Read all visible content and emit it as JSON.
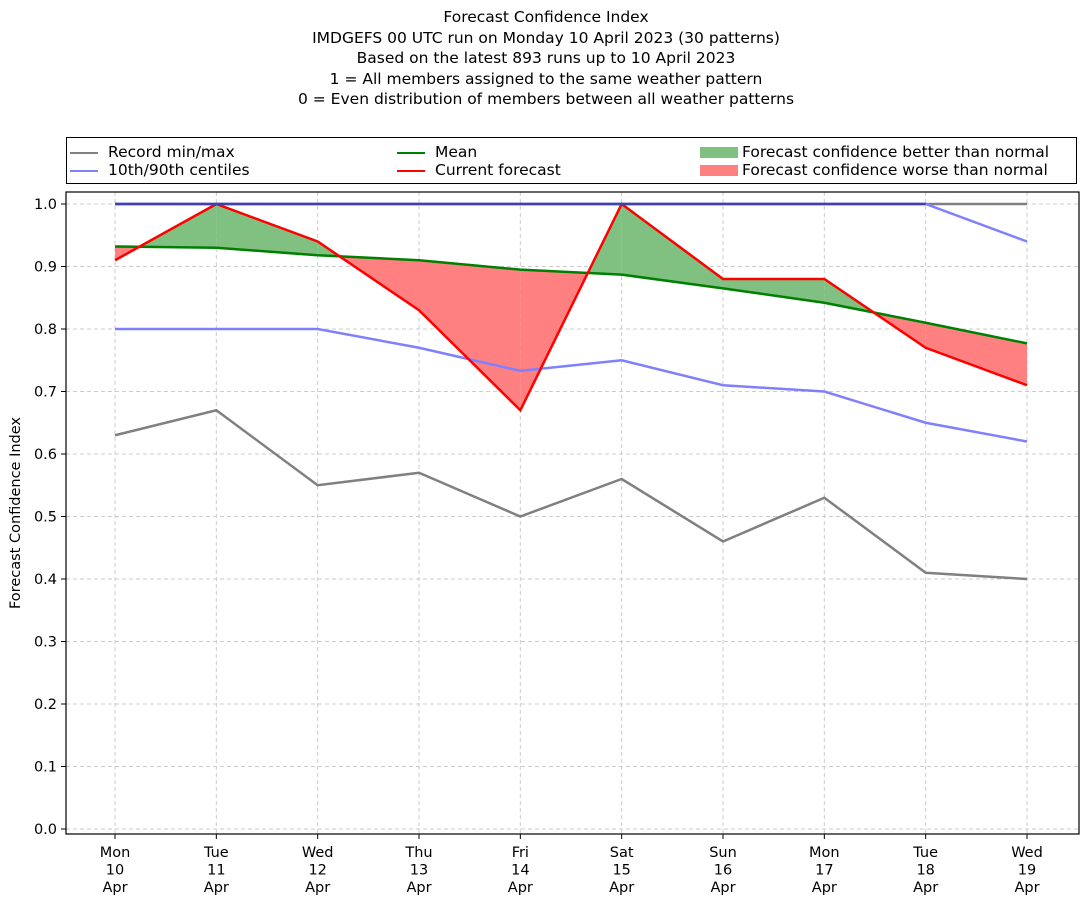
{
  "chart_data": {
    "type": "line",
    "title_lines": [
      "Forecast Confidence Index",
      "IMDGEFS 00 UTC run on Monday 10 April 2023 (30 patterns)",
      "Based on the latest 893 runs up to 10 April 2023",
      "1 = All members assigned to the same weather pattern",
      "0 = Even distribution of members between all weather patterns"
    ],
    "xlabel": "",
    "ylabel": "Forecast Confidence Index",
    "ylim": [
      0.0,
      1.0
    ],
    "yticks": [
      "0.0",
      "0.1",
      "0.2",
      "0.3",
      "0.4",
      "0.5",
      "0.6",
      "0.7",
      "0.8",
      "0.9",
      "1.0"
    ],
    "ytick_values": [
      0.0,
      0.1,
      0.2,
      0.3,
      0.4,
      0.5,
      0.6,
      0.7,
      0.8,
      0.9,
      1.0
    ],
    "grid": true,
    "categories": [
      {
        "dow": "Mon",
        "day": "10",
        "mon": "Apr"
      },
      {
        "dow": "Tue",
        "day": "11",
        "mon": "Apr"
      },
      {
        "dow": "Wed",
        "day": "12",
        "mon": "Apr"
      },
      {
        "dow": "Thu",
        "day": "13",
        "mon": "Apr"
      },
      {
        "dow": "Fri",
        "day": "14",
        "mon": "Apr"
      },
      {
        "dow": "Sat",
        "day": "15",
        "mon": "Apr"
      },
      {
        "dow": "Sun",
        "day": "16",
        "mon": "Apr"
      },
      {
        "dow": "Mon",
        "day": "17",
        "mon": "Apr"
      },
      {
        "dow": "Tue",
        "day": "18",
        "mon": "Apr"
      },
      {
        "dow": "Wed",
        "day": "19",
        "mon": "Apr"
      }
    ],
    "series": [
      {
        "name": "Record min",
        "legend_group": "Record min/max",
        "color": "#808080",
        "values": [
          0.63,
          0.67,
          0.55,
          0.57,
          0.5,
          0.56,
          0.46,
          0.53,
          0.41,
          0.4
        ]
      },
      {
        "name": "Record max",
        "legend_group": "Record min/max",
        "color": "#808080",
        "values": [
          1.0,
          1.0,
          1.0,
          1.0,
          1.0,
          1.0,
          1.0,
          1.0,
          1.0,
          1.0
        ]
      },
      {
        "name": "10th centile",
        "legend_group": "10th/90th centiles",
        "color": "#8080ff",
        "values": [
          0.8,
          0.8,
          0.8,
          0.77,
          0.733,
          0.75,
          0.71,
          0.7,
          0.65,
          0.62
        ]
      },
      {
        "name": "90th centile",
        "legend_group": "10th/90th centiles",
        "color": "#8080ff",
        "values": [
          1.0,
          1.0,
          1.0,
          1.0,
          1.0,
          1.0,
          1.0,
          1.0,
          1.0,
          0.94
        ]
      },
      {
        "name": "Mean",
        "color": "#008000",
        "values": [
          0.932,
          0.93,
          0.918,
          0.91,
          0.895,
          0.887,
          0.865,
          0.842,
          0.81,
          0.777
        ]
      },
      {
        "name": "Current forecast",
        "color": "#ff0000",
        "values": [
          0.91,
          1.0,
          0.94,
          0.83,
          0.67,
          1.0,
          0.88,
          0.88,
          0.77,
          0.71
        ]
      }
    ],
    "fills": {
      "better": {
        "label": "Forecast confidence better than normal",
        "color": "#80c080"
      },
      "worse": {
        "label": "Forecast confidence worse than normal",
        "color": "#ff8080"
      }
    },
    "legend": {
      "placement": "top (above axes, full width)",
      "entries": [
        {
          "label": "Record min/max",
          "kind": "line",
          "color": "#808080"
        },
        {
          "label": "10th/90th centiles",
          "kind": "line",
          "color": "#8080ff"
        },
        {
          "label": "Mean",
          "kind": "line",
          "color": "#008000"
        },
        {
          "label": "Current forecast",
          "kind": "line",
          "color": "#ff0000"
        },
        {
          "label": "Forecast confidence better than normal",
          "kind": "patch",
          "color": "#80c080"
        },
        {
          "label": "Forecast confidence worse than normal",
          "kind": "patch",
          "color": "#ff8080"
        }
      ]
    }
  }
}
